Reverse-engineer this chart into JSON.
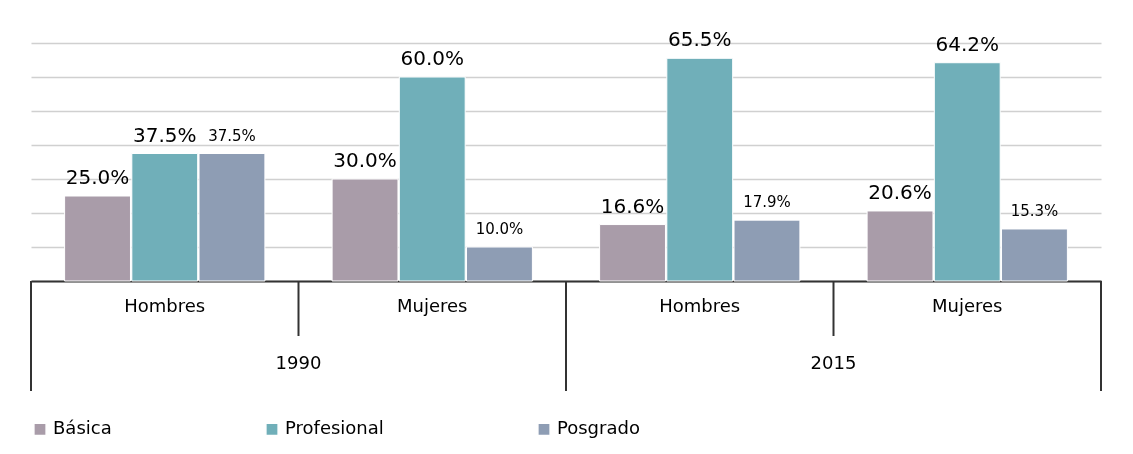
{
  "chart_data": {
    "type": "bar",
    "categories": [
      "Hombres",
      "Mujeres",
      "Hombres",
      "Mujeres"
    ],
    "series": [
      {
        "name": "Básica",
        "color": "#a99ca9",
        "values": [
          25.0,
          30.0,
          16.6,
          20.6
        ],
        "value_labels": [
          "25.0%",
          "30.0%",
          "16.6%",
          "20.6%"
        ]
      },
      {
        "name": "Profesional",
        "color": "#70afb9",
        "values": [
          37.5,
          60.0,
          65.5,
          64.2
        ],
        "value_labels": [
          "37.5%",
          "60.0%",
          "65.5%",
          "64.2%"
        ]
      },
      {
        "name": "Posgrado",
        "color": "#8e9db4",
        "values": [
          37.5,
          10.0,
          17.9,
          15.3
        ],
        "value_labels": [
          "37.5%",
          "10.0%",
          "17.9%",
          "15.3%"
        ]
      }
    ],
    "annotations": [
      "1990",
      "2015"
    ],
    "grid": "y",
    "tick_labels": "x",
    "legend": "bottom"
  }
}
